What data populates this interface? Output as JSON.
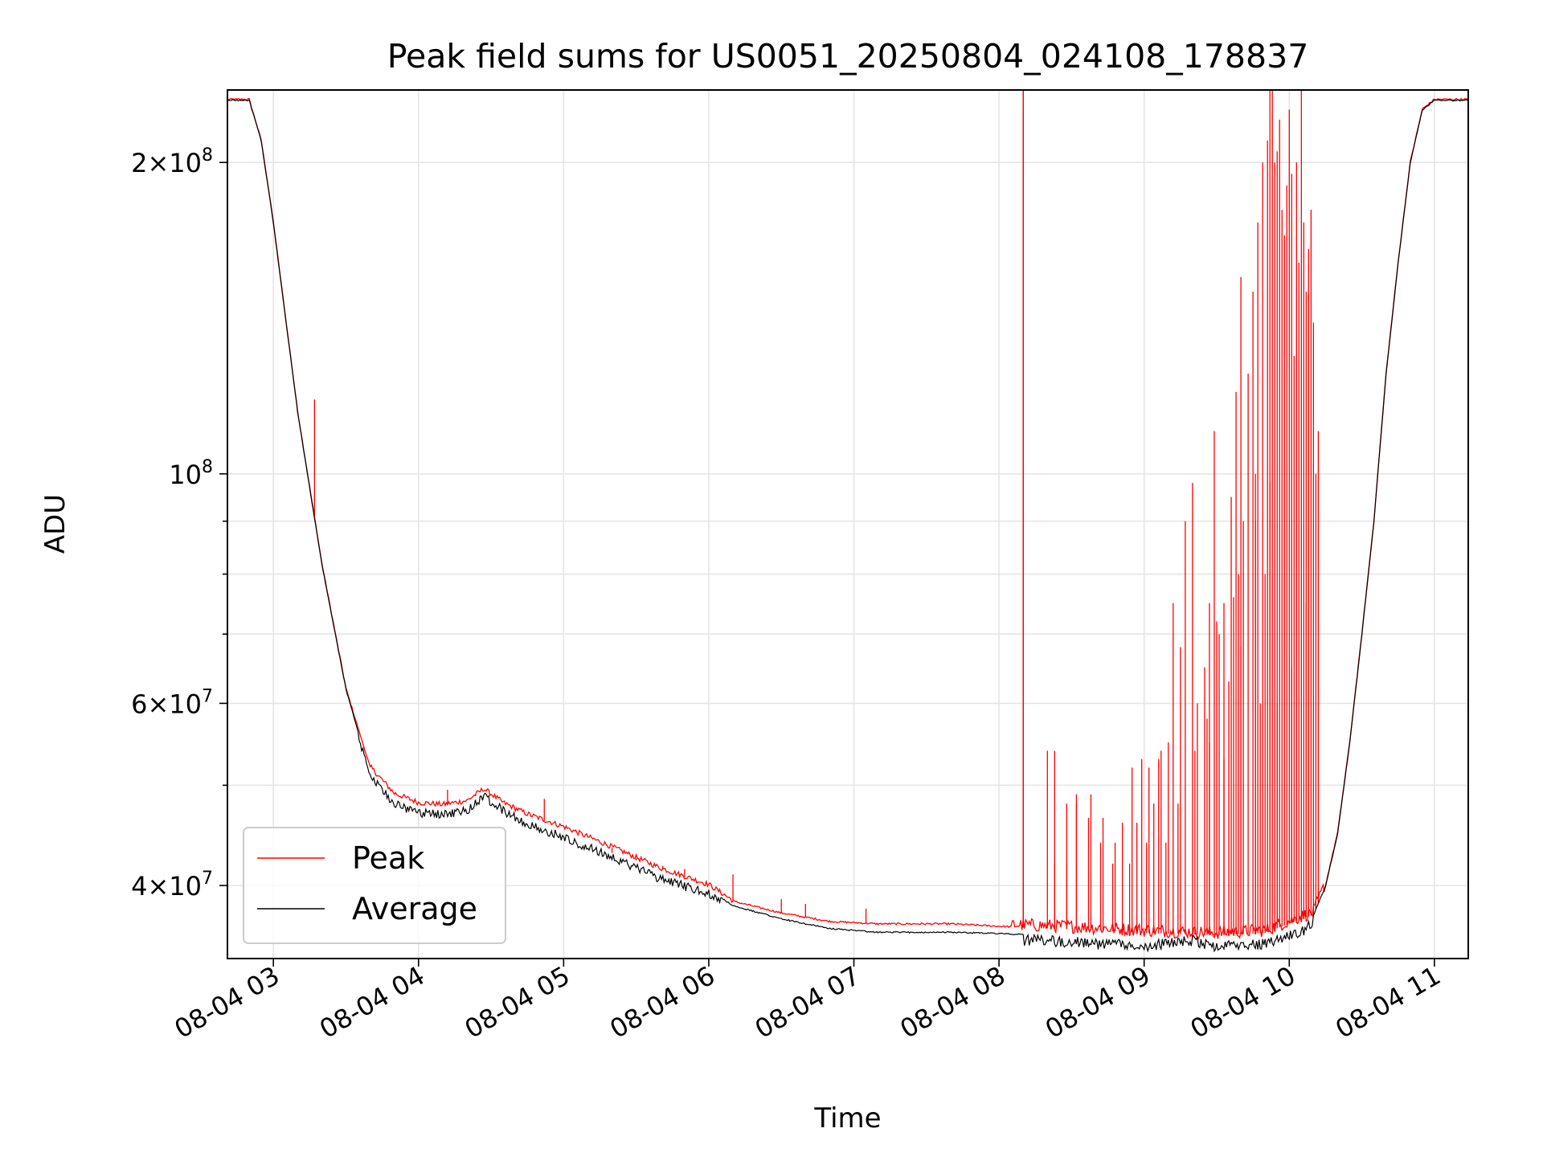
{
  "chart_data": {
    "type": "line",
    "title": "Peak field sums for US0051_20250804_024108_178837",
    "xlabel": "Time",
    "ylabel": "ADU",
    "yscale": "log",
    "xlim": [
      "08-04 02:41",
      "08-04 11:14"
    ],
    "ylim": [
      34000000,
      235000000
    ],
    "grid": true,
    "legend_position": "lower-left",
    "x_ticks": [
      "08-04 03",
      "08-04 04",
      "08-04 05",
      "08-04 06",
      "08-04 07",
      "08-04 08",
      "08-04 09",
      "08-04 10",
      "08-04 11"
    ],
    "y_major_ticks": [
      {
        "value": 40000000,
        "mant": "4",
        "exp": "7"
      },
      {
        "value": 60000000,
        "mant": "6",
        "exp": "7"
      },
      {
        "value": 100000000,
        "mant": "",
        "exp": "8"
      },
      {
        "value": 200000000,
        "mant": "2",
        "exp": "8"
      }
    ],
    "y_minor_ticks": [
      50000000,
      70000000,
      80000000,
      90000000
    ],
    "series": [
      {
        "name": "Peak",
        "color": "#ff0000",
        "baseline": [
          [
            "08-04 02:41",
            230000000
          ],
          [
            "08-04 02:50",
            230000000
          ],
          [
            "08-04 02:55",
            210000000
          ],
          [
            "08-04 03:00",
            175000000
          ],
          [
            "08-04 03:10",
            115000000
          ],
          [
            "08-04 03:20",
            82000000
          ],
          [
            "08-04 03:30",
            62000000
          ],
          [
            "08-04 03:40",
            52000000
          ],
          [
            "08-04 03:50",
            49000000
          ],
          [
            "08-04 04:00",
            48000000
          ],
          [
            "08-04 04:10",
            47800000
          ],
          [
            "08-04 04:20",
            48200000
          ],
          [
            "08-04 04:27",
            49500000
          ],
          [
            "08-04 04:35",
            48000000
          ],
          [
            "08-04 04:45",
            46800000
          ],
          [
            "08-04 05:00",
            45500000
          ],
          [
            "08-04 05:20",
            43500000
          ],
          [
            "08-04 05:40",
            41500000
          ],
          [
            "08-04 06:00",
            40000000
          ],
          [
            "08-04 06:10",
            38600000
          ],
          [
            "08-04 06:30",
            37600000
          ],
          [
            "08-04 06:50",
            36900000
          ],
          [
            "08-04 07:10",
            36700000
          ],
          [
            "08-04 07:40",
            36700000
          ],
          [
            "08-04 08:00",
            36500000
          ],
          [
            "08-04 08:30",
            36300000
          ],
          [
            "08-04 09:00",
            36000000
          ],
          [
            "08-04 09:30",
            35800000
          ],
          [
            "08-04 09:50",
            36000000
          ],
          [
            "08-04 10:10",
            37500000
          ],
          [
            "08-04 10:15",
            40000000
          ],
          [
            "08-04 10:20",
            45000000
          ],
          [
            "08-04 10:25",
            55000000
          ],
          [
            "08-04 10:30",
            70000000
          ],
          [
            "08-04 10:35",
            90000000
          ],
          [
            "08-04 10:40",
            125000000
          ],
          [
            "08-04 10:45",
            160000000
          ],
          [
            "08-04 10:50",
            200000000
          ],
          [
            "08-04 10:55",
            225000000
          ],
          [
            "08-04 11:00",
            230000000
          ],
          [
            "08-04 11:14",
            230000000
          ]
        ],
        "spikes": [
          [
            "08-04 03:17",
            118000000
          ],
          [
            "08-04 04:12",
            49500000
          ],
          [
            "08-04 04:52",
            48500000
          ],
          [
            "08-04 05:20",
            43000000
          ],
          [
            "08-04 05:30",
            42300000
          ],
          [
            "08-04 05:41",
            41800000
          ],
          [
            "08-04 05:50",
            41500000
          ],
          [
            "08-04 06:10",
            41000000
          ],
          [
            "08-04 06:30",
            38800000
          ],
          [
            "08-04 06:40",
            38400000
          ],
          [
            "08-04 07:05",
            38000000
          ],
          [
            "08-04 08:10",
            39000000
          ],
          [
            "08-04 08:23",
            54000000
          ],
          [
            "08-04 08:28",
            42000000
          ],
          [
            "08-04 08:32",
            48000000
          ],
          [
            "08-04 08:38",
            49000000
          ],
          [
            "08-04 08:43",
            46500000
          ],
          [
            "08-04 08:48",
            44000000
          ],
          [
            "08-04 08:54",
            42000000
          ],
          [
            "08-04 08:57",
            46000000
          ],
          [
            "08-04 09:02",
            52000000
          ],
          [
            "08-04 09:06",
            53000000
          ],
          [
            "08-04 09:09",
            44000000
          ],
          [
            "08-04 09:14",
            48000000
          ],
          [
            "08-04 09:21",
            54000000
          ],
          [
            "08-04 09:27",
            55000000
          ],
          [
            "08-04 09:33",
            75000000
          ],
          [
            "08-04 09:40",
            68000000
          ],
          [
            "08-04 09:46",
            90000000
          ],
          [
            "08-04 09:52",
            98000000
          ],
          [
            "08-04 09:55",
            60000000
          ],
          [
            "08-04 10:01",
            65000000
          ],
          [
            "08-04 10:07",
            75000000
          ],
          [
            "08-04 10:12",
            110000000
          ],
          [
            "08-04 10:16",
            70000000
          ],
          [
            "08-04 10:18",
            53000000
          ],
          [
            "08-04 10:24",
            63000000
          ],
          [
            "08-04 10:28",
            76000000
          ],
          [
            "08-04 10:32",
            80000000
          ],
          [
            "08-04 10:38",
            90000000
          ],
          [
            "08-04 10:44",
            125000000
          ],
          [
            "08-04 10:50",
            150000000
          ],
          [
            "08-04 10:56",
            175000000
          ],
          [
            "08-04 11:02",
            200000000
          ],
          [
            "08-04 11:08",
            210000000
          ],
          [
            "08-04 11:14",
            235000000
          ],
          [
            "08-04 11:20",
            205000000
          ],
          [
            "08-04 11:26",
            180000000
          ],
          [
            "08-04 11:32",
            190000000
          ],
          [
            "08-04 11:38",
            195000000
          ],
          [
            "08-04 11:44",
            200000000
          ],
          [
            "08-04 11:50",
            235000000
          ],
          [
            "08-04 11:56",
            175000000
          ],
          [
            "08-04 12:02",
            150000000
          ],
          [
            "08-04 12:08",
            165000000
          ],
          [
            "08-04 12:14",
            235000000
          ],
          [
            "08-04 12:20",
            200000000
          ],
          [
            "08-04 12:26",
            220000000
          ],
          [
            "08-04 12:32",
            170000000
          ],
          [
            "08-04 12:38",
            225000000
          ],
          [
            "08-04 12:44",
            130000000
          ],
          [
            "08-04 12:50",
            160000000
          ],
          [
            "08-04 12:56",
            100000000
          ],
          [
            "08-04 13:02",
            60000000
          ],
          [
            "08-04 13:08",
            80000000
          ],
          [
            "08-04 13:14",
            180000000
          ],
          [
            "08-04 13:20",
            140000000
          ],
          [
            "08-04 13:26",
            100000000
          ]
        ]
      },
      {
        "name": "Average",
        "color": "#000000",
        "baseline": [
          [
            "08-04 02:41",
            230000000
          ],
          [
            "08-04 02:50",
            230000000
          ],
          [
            "08-04 02:55",
            210000000
          ],
          [
            "08-04 03:00",
            175000000
          ],
          [
            "08-04 03:10",
            115000000
          ],
          [
            "08-04 03:20",
            82000000
          ],
          [
            "08-04 03:30",
            62000000
          ],
          [
            "08-04 03:40",
            51500000
          ],
          [
            "08-04 03:50",
            48500000
          ],
          [
            "08-04 04:00",
            47500000
          ],
          [
            "08-04 04:10",
            47300000
          ],
          [
            "08-04 04:20",
            47800000
          ],
          [
            "08-04 04:27",
            49300000
          ],
          [
            "08-04 04:35",
            47700000
          ],
          [
            "08-04 04:45",
            46300000
          ],
          [
            "08-04 05:00",
            45000000
          ],
          [
            "08-04 05:20",
            43000000
          ],
          [
            "08-04 05:40",
            41000000
          ],
          [
            "08-04 06:00",
            39700000
          ],
          [
            "08-04 06:10",
            38300000
          ],
          [
            "08-04 06:30",
            37200000
          ],
          [
            "08-04 06:50",
            36400000
          ],
          [
            "08-04 07:10",
            36100000
          ],
          [
            "08-04 07:40",
            36100000
          ],
          [
            "08-04 08:00",
            36000000
          ],
          [
            "08-04 08:30",
            35700000
          ],
          [
            "08-04 09:00",
            35400000
          ],
          [
            "08-04 09:20",
            35800000
          ],
          [
            "08-04 09:30",
            35300000
          ],
          [
            "08-04 09:50",
            35600000
          ],
          [
            "08-04 10:05",
            36500000
          ],
          [
            "08-04 10:10",
            37500000
          ],
          [
            "08-04 10:15",
            40000000
          ],
          [
            "08-04 10:20",
            45000000
          ],
          [
            "08-04 10:25",
            55000000
          ],
          [
            "08-04 10:30",
            70000000
          ],
          [
            "08-04 10:35",
            90000000
          ],
          [
            "08-04 10:40",
            125000000
          ],
          [
            "08-04 10:45",
            160000000
          ],
          [
            "08-04 10:50",
            200000000
          ],
          [
            "08-04 10:55",
            225000000
          ],
          [
            "08-04 11:00",
            230000000
          ],
          [
            "08-04 11:14",
            230000000
          ]
        ]
      }
    ]
  }
}
